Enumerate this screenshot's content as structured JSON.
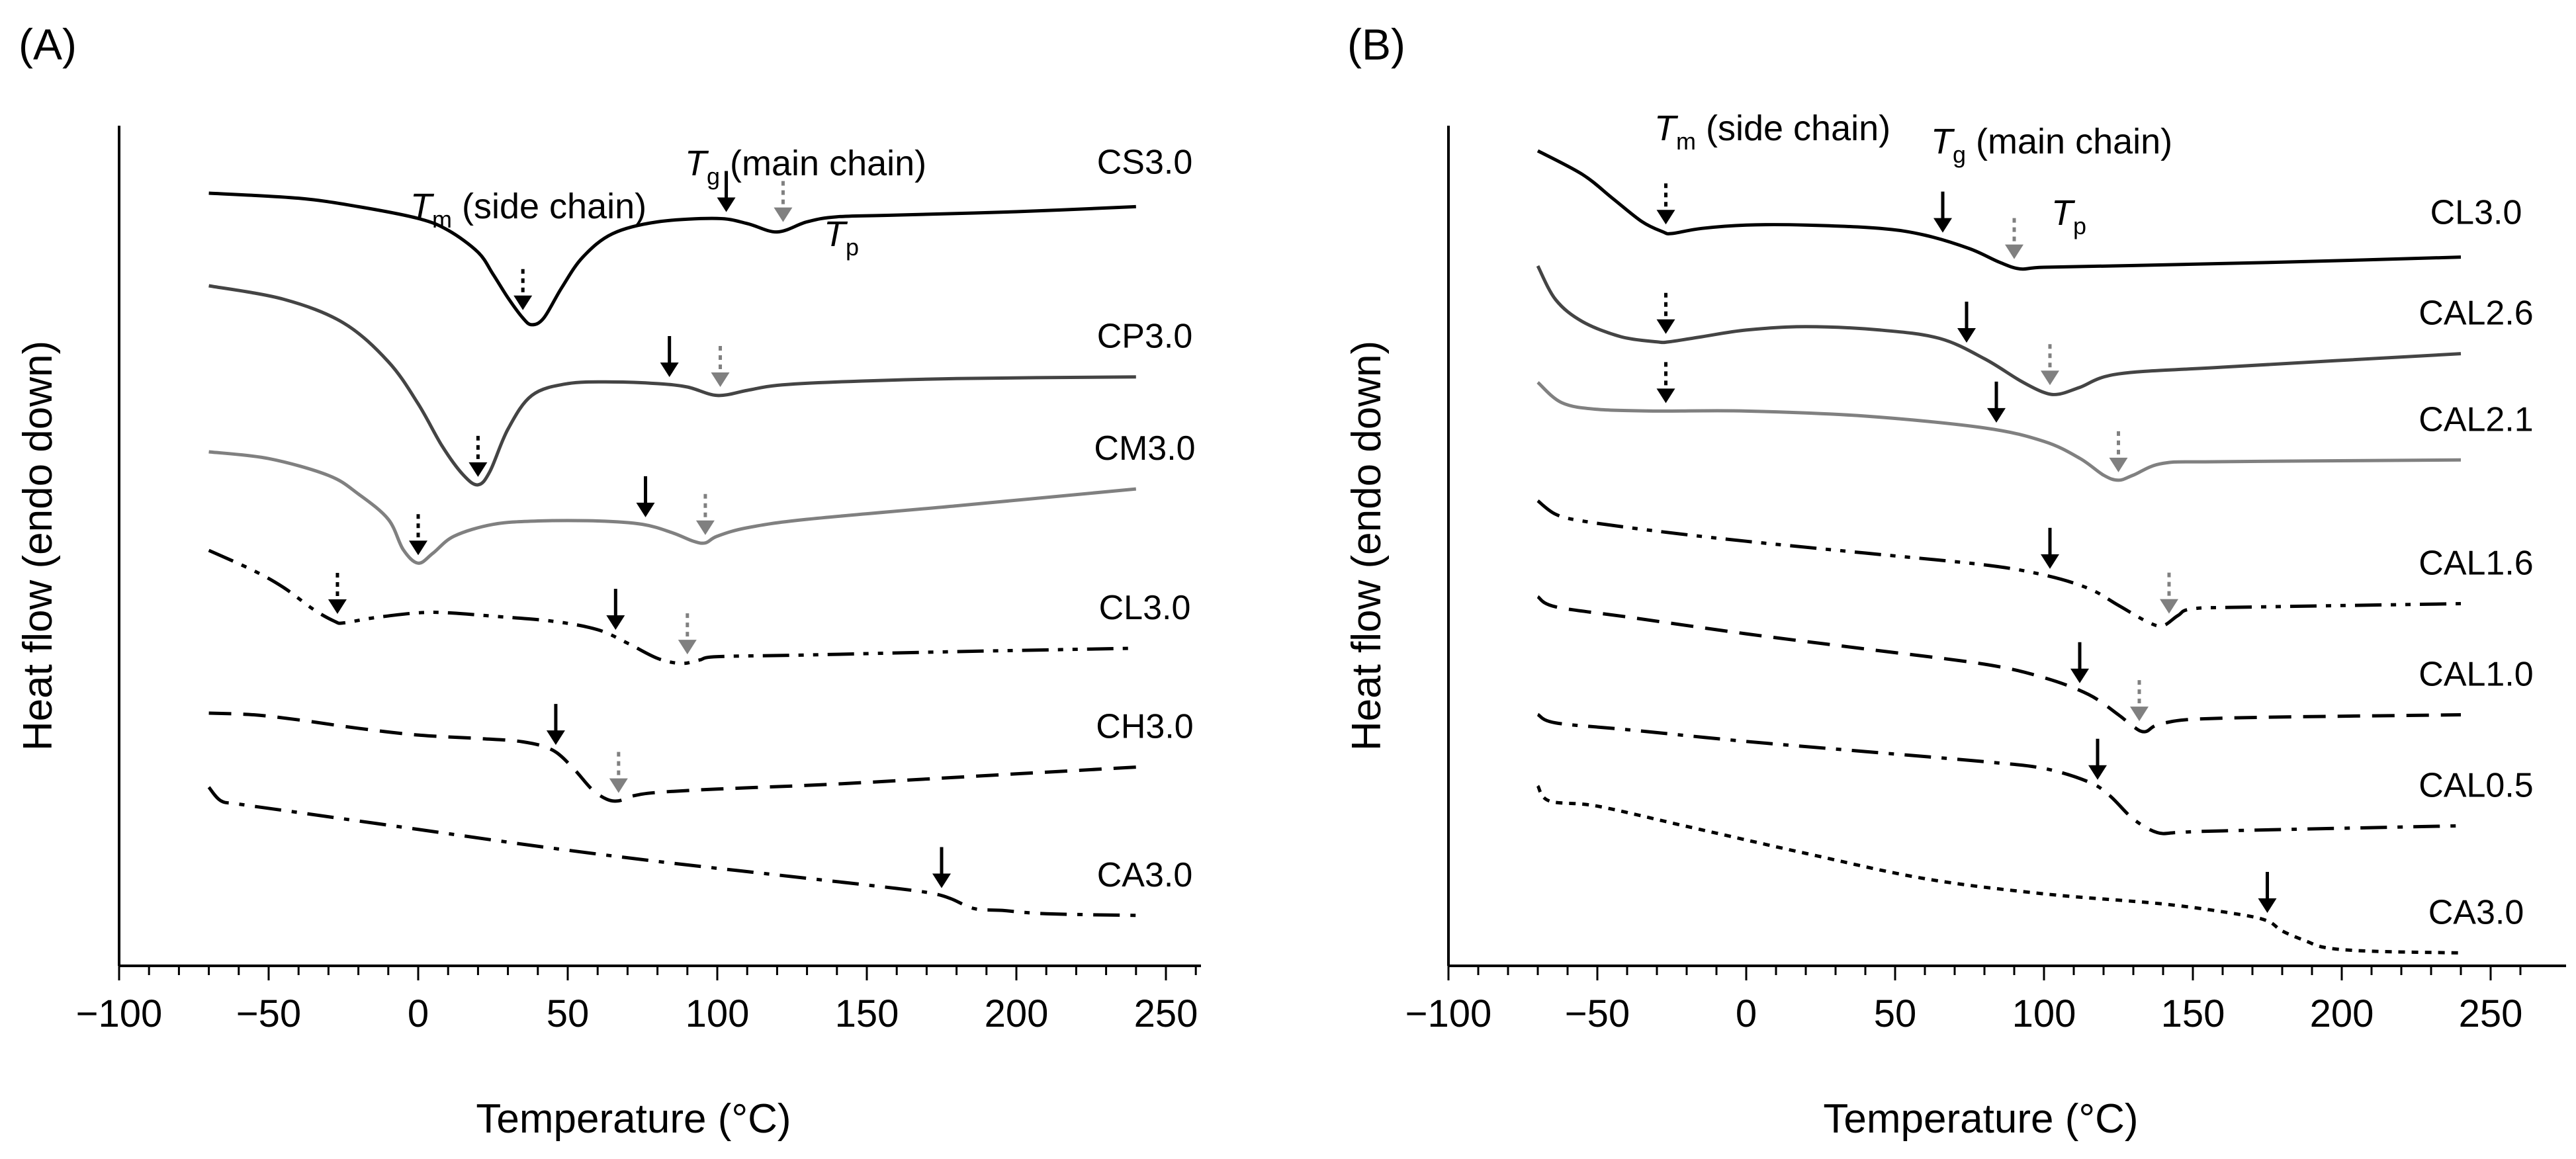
{
  "chart_data": [
    {
      "panel_label": "(A)",
      "type": "line",
      "xlabel": "Temperature (°C)",
      "ylabel": "Heat flow (endo down)",
      "xlim": [
        -100,
        260
      ],
      "xticks": [
        -100,
        -50,
        0,
        50,
        100,
        150,
        200,
        250
      ],
      "xtick_labels": [
        "−100",
        "−50",
        "0",
        "50",
        "100",
        "150",
        "200",
        "250"
      ],
      "annotations": {
        "tm": {
          "main": "T",
          "sub": "m",
          "text": " (side chain)"
        },
        "tg": {
          "main": "T",
          "sub": "g",
          "text": " (main chain)"
        },
        "tp": {
          "main": "T",
          "sub": "p"
        }
      },
      "legend_position": "right of curves",
      "series": [
        {
          "name": "CS3.0",
          "color": "#000000",
          "dash": "solid",
          "offset": 0,
          "x": [
            -70,
            -40,
            -20,
            0,
            10,
            20,
            25,
            30,
            35,
            38,
            42,
            48,
            55,
            65,
            80,
            100,
            110,
            120,
            130,
            140,
            160,
            200,
            240
          ],
          "y": [
            0,
            -3,
            -8,
            -15,
            -22,
            -35,
            -48,
            -62,
            -74,
            -78,
            -74,
            -56,
            -38,
            -24,
            -17,
            -15,
            -18,
            -23,
            -17,
            -14,
            -13,
            -11,
            -8
          ],
          "tm": 35,
          "tg": 103,
          "tp": 122
        },
        {
          "name": "CP3.0",
          "color": "#444444",
          "dash": "solid",
          "offset": 1,
          "x": [
            -70,
            -45,
            -25,
            -10,
            0,
            8,
            15,
            20,
            24,
            30,
            38,
            50,
            65,
            80,
            90,
            100,
            110,
            120,
            140,
            180,
            240
          ],
          "y": [
            0,
            -8,
            -22,
            -45,
            -70,
            -95,
            -112,
            -118,
            -110,
            -85,
            -65,
            -58,
            -57,
            -58,
            -60,
            -65,
            -62,
            -59,
            -57,
            -55,
            -54
          ],
          "tm": 20,
          "tg": 84,
          "tp": 101
        },
        {
          "name": "CM3.0",
          "color": "#808080",
          "dash": "solid",
          "offset": 2,
          "x": [
            -70,
            -50,
            -30,
            -20,
            -10,
            -5,
            0,
            5,
            12,
            25,
            40,
            60,
            75,
            85,
            92,
            96,
            100,
            110,
            130,
            180,
            240
          ],
          "y": [
            0,
            -4,
            -14,
            -25,
            -40,
            -58,
            -66,
            -60,
            -50,
            -43,
            -41,
            -41,
            -43,
            -48,
            -53,
            -54,
            -50,
            -45,
            -40,
            -32,
            -22
          ],
          "tm": 0,
          "tg": 76,
          "tp": 96
        },
        {
          "name": "CL3.0",
          "color": "#000000",
          "dash": "dashdotdot",
          "offset": 3,
          "x": [
            -70,
            -55,
            -45,
            -35,
            -28,
            -25,
            -15,
            0,
            10,
            25,
            45,
            60,
            70,
            80,
            88,
            94,
            100,
            130,
            180,
            240
          ],
          "y": [
            0,
            -12,
            -22,
            -35,
            -42,
            -43,
            -40,
            -37,
            -37,
            -39,
            -42,
            -47,
            -55,
            -64,
            -67,
            -65,
            -63,
            -62,
            -60,
            -58
          ],
          "tm": -27,
          "tg": 66,
          "tp": 90
        },
        {
          "name": "CH3.0",
          "color": "#000000",
          "dash": "dashed",
          "offset": 4,
          "x": [
            -70,
            -55,
            -40,
            -20,
            0,
            20,
            35,
            45,
            52,
            58,
            63,
            67,
            72,
            80,
            100,
            140,
            200,
            240
          ],
          "y": [
            0,
            -1,
            -4,
            -9,
            -13,
            -15,
            -17,
            -22,
            -33,
            -45,
            -51,
            -52,
            -49,
            -47,
            -45,
            -42,
            -36,
            -32
          ],
          "tm": null,
          "tg": 46,
          "tp": 67
        },
        {
          "name": "CA3.0",
          "color": "#000000",
          "dash": "dashdot",
          "offset": 5,
          "x": [
            -70,
            -66,
            -60,
            -40,
            0,
            40,
            80,
            120,
            160,
            172,
            178,
            186,
            195,
            210,
            240
          ],
          "y": [
            0,
            -8,
            -10,
            -15,
            -25,
            -35,
            -44,
            -52,
            -60,
            -63,
            -66,
            -72,
            -73,
            -75,
            -76
          ],
          "tm": null,
          "tg": 175,
          "tp": null
        }
      ]
    },
    {
      "panel_label": "(B)",
      "type": "line",
      "xlabel": "Temperature (°C)",
      "ylabel": "Heat flow (endo down)",
      "xlim": [
        -100,
        260
      ],
      "xticks": [
        -100,
        -50,
        0,
        50,
        100,
        150,
        200,
        250
      ],
      "xtick_labels": [
        "−100",
        "−50",
        "0",
        "50",
        "100",
        "150",
        "200",
        "250"
      ],
      "annotations": {
        "tm": {
          "main": "T",
          "sub": "m",
          "text": " (side chain)"
        },
        "tg": {
          "main": "T",
          "sub": "g",
          "text": " (main chain)"
        },
        "tp": {
          "main": "T",
          "sub": "p"
        }
      },
      "legend_position": "right of curves",
      "series": [
        {
          "name": "CL3.0",
          "color": "#000000",
          "dash": "solid",
          "offset": 0,
          "x": [
            -70,
            -55,
            -45,
            -35,
            -28,
            -25,
            -15,
            0,
            20,
            45,
            60,
            75,
            85,
            92,
            100,
            130,
            180,
            240
          ],
          "y": [
            0,
            -14,
            -28,
            -42,
            -48,
            -49,
            -46,
            -44,
            -44,
            -46,
            -50,
            -58,
            -66,
            -70,
            -69,
            -68,
            -66,
            -63
          ],
          "tm": -27,
          "tg": 66,
          "tp": 90
        },
        {
          "name": "CAL2.6",
          "color": "#444444",
          "dash": "solid",
          "offset": 1,
          "x": [
            -70,
            -64,
            -55,
            -42,
            -30,
            -26,
            -15,
            0,
            20,
            45,
            65,
            80,
            92,
            100,
            105,
            112,
            125,
            160,
            240
          ],
          "y": [
            0,
            -20,
            -33,
            -42,
            -45,
            -45,
            -42,
            -38,
            -36,
            -38,
            -43,
            -55,
            -68,
            -75,
            -76,
            -72,
            -64,
            -60,
            -52
          ],
          "tm": -27,
          "tg": 74,
          "tp": 102
        },
        {
          "name": "CAL2.1",
          "color": "#808080",
          "dash": "solid",
          "offset": 2,
          "x": [
            -70,
            -62,
            -50,
            -30,
            0,
            40,
            80,
            100,
            112,
            120,
            125,
            130,
            140,
            160,
            240
          ],
          "y": [
            0,
            -12,
            -16,
            -17,
            -17,
            -20,
            -27,
            -35,
            -45,
            -55,
            -58,
            -55,
            -48,
            -47,
            -46
          ],
          "tm": -27,
          "tg": 84,
          "tp": 125
        },
        {
          "name": "CAL1.6",
          "color": "#000000",
          "dash": "dashdotdot",
          "offset": 3,
          "x": [
            -70,
            -64,
            -55,
            -30,
            0,
            40,
            80,
            100,
            115,
            125,
            135,
            140,
            145,
            150,
            170,
            240
          ],
          "y": [
            0,
            -8,
            -12,
            -18,
            -24,
            -31,
            -38,
            -44,
            -52,
            -62,
            -72,
            -74,
            -68,
            -64,
            -63,
            -61
          ],
          "tm": null,
          "tg": 102,
          "tp": 142
        },
        {
          "name": "CAL1.0",
          "color": "#000000",
          "dash": "dashed",
          "offset": 4,
          "x": [
            -70,
            -64,
            -40,
            0,
            40,
            80,
            100,
            115,
            125,
            130,
            134,
            140,
            160,
            240
          ],
          "y": [
            0,
            -6,
            -12,
            -22,
            -31,
            -40,
            -48,
            -58,
            -70,
            -77,
            -80,
            -75,
            -72,
            -70
          ],
          "tm": null,
          "tg": 112,
          "tp": 132
        },
        {
          "name": "CAL0.5",
          "color": "#000000",
          "dash": "dashdot",
          "offset": 5,
          "x": [
            -70,
            -64,
            -40,
            0,
            40,
            80,
            100,
            115,
            122,
            130,
            138,
            145,
            160,
            240
          ],
          "y": [
            0,
            -5,
            -9,
            -16,
            -22,
            -28,
            -32,
            -40,
            -48,
            -62,
            -70,
            -70,
            -69,
            -66
          ],
          "tm": null,
          "tg": 118,
          "tp": null
        },
        {
          "name": "CA3.0",
          "color": "#000000",
          "dash": "dotted",
          "offset": 6,
          "x": [
            -70,
            -66,
            -50,
            -20,
            20,
            60,
            100,
            140,
            165,
            175,
            180,
            188,
            195,
            210,
            240
          ],
          "y": [
            0,
            -9,
            -12,
            -24,
            -40,
            -55,
            -64,
            -70,
            -76,
            -80,
            -86,
            -92,
            -96,
            -98,
            -99
          ],
          "tm": null,
          "tg": 175,
          "tp": null
        }
      ]
    }
  ]
}
